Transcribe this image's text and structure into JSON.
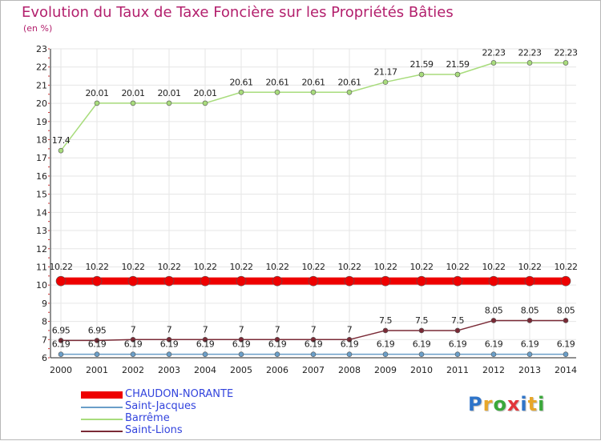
{
  "chart_data": {
    "type": "line",
    "title": "Evolution du Taux de Taxe Foncière sur les Propriétés Bâties",
    "ylabel": "(en %)",
    "xlabel": "",
    "ylim": [
      6,
      23
    ],
    "yticks": [
      "6",
      "7",
      "8",
      "9",
      "10",
      "11",
      "12",
      "13",
      "14",
      "15",
      "16",
      "17",
      "18",
      "19",
      "20",
      "21",
      "22",
      "23"
    ],
    "categories": [
      "2000",
      "2001",
      "2002",
      "2003",
      "2004",
      "2005",
      "2006",
      "2007",
      "2008",
      "2009",
      "2010",
      "2011",
      "2012",
      "2013",
      "2014"
    ],
    "series": [
      {
        "name": "CHAUDON-NORANTE",
        "color": "#ee0000",
        "values": [
          10.22,
          10.22,
          10.22,
          10.22,
          10.22,
          10.22,
          10.22,
          10.22,
          10.22,
          10.22,
          10.22,
          10.22,
          10.22,
          10.22,
          10.22
        ],
        "labels": [
          "10.22",
          "10.22",
          "10.22",
          "10.22",
          "10.22",
          "10.22",
          "10.22",
          "10.22",
          "10.22",
          "10.22",
          "10.22",
          "10.22",
          "10.22",
          "10.22",
          "10.22"
        ]
      },
      {
        "name": "Saint-Jacques",
        "color": "#6a9ec8",
        "values": [
          6.19,
          6.19,
          6.19,
          6.19,
          6.19,
          6.19,
          6.19,
          6.19,
          6.19,
          6.19,
          6.19,
          6.19,
          6.19,
          6.19,
          6.19
        ],
        "labels": [
          "6.19",
          "6.19",
          "6.19",
          "6.19",
          "6.19",
          "6.19",
          "6.19",
          "6.19",
          "6.19",
          "6.19",
          "6.19",
          "6.19",
          "6.19",
          "6.19",
          "6.19"
        ]
      },
      {
        "name": "Barrême",
        "color": "#a8dc7c",
        "values": [
          17.4,
          20.01,
          20.01,
          20.01,
          20.01,
          20.61,
          20.61,
          20.61,
          20.61,
          21.17,
          21.59,
          21.59,
          22.23,
          22.23,
          22.23
        ],
        "labels": [
          "17.4",
          "20.01",
          "20.01",
          "20.01",
          "20.01",
          "20.61",
          "20.61",
          "20.61",
          "20.61",
          "21.17",
          "21.59",
          "21.59",
          "22.23",
          "22.23",
          "22.23"
        ]
      },
      {
        "name": "Saint-Lions",
        "color": "#7a2a36",
        "values": [
          6.95,
          6.95,
          7,
          7,
          7,
          7,
          7,
          7,
          7,
          7.5,
          7.5,
          7.5,
          8.05,
          8.05,
          8.05
        ],
        "labels": [
          "6.95",
          "6.95",
          "7",
          "7",
          "7",
          "7",
          "7",
          "7",
          "7",
          "7.5",
          "7.5",
          "7.5",
          "8.05",
          "8.05",
          "8.05"
        ]
      }
    ]
  },
  "legend": {
    "items": [
      {
        "label": "CHAUDON-NORANTE",
        "color": "#ee0000"
      },
      {
        "label": "Saint-Jacques",
        "color": "#6a9ec8"
      },
      {
        "label": "Barrême",
        "color": "#a8dc7c"
      },
      {
        "label": "Saint-Lions",
        "color": "#7a2a36"
      }
    ]
  },
  "logo": {
    "text": "Proxiti",
    "colors": [
      "#2e74c9",
      "#e8a72a",
      "#3aa83a",
      "#e2363b",
      "#2e74c9",
      "#e8a72a",
      "#3aa83a"
    ]
  }
}
